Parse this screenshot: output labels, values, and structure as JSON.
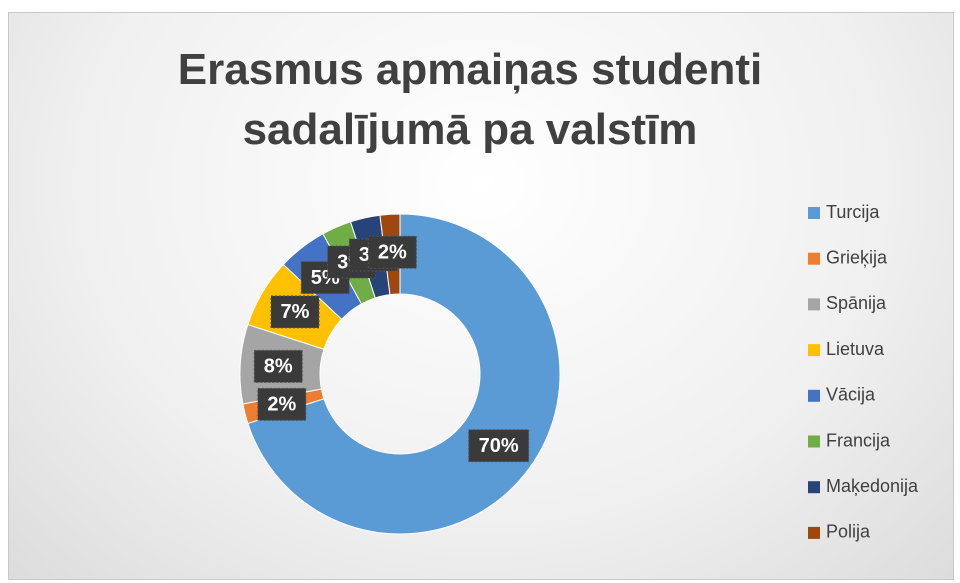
{
  "chart_data": {
    "type": "doughnut",
    "title": "Erasmus apmaiņas studenti sadalījumā pa valstīm",
    "categories": [
      "Turcija",
      "Grieķija",
      "Spānija",
      "Lietuva",
      "Vācija",
      "Francija",
      "Maķedonija",
      "Polija"
    ],
    "values": [
      70,
      2,
      8,
      7,
      5,
      3,
      3,
      2
    ],
    "value_labels": [
      "70%",
      "2%",
      "8%",
      "7%",
      "5%",
      "3%",
      "3%",
      "2%"
    ],
    "colors": [
      "#5b9bd5",
      "#ed7d31",
      "#a5a5a5",
      "#ffc000",
      "#4472c4",
      "#70ad47",
      "#264478",
      "#9e480e"
    ],
    "legend": "right"
  }
}
